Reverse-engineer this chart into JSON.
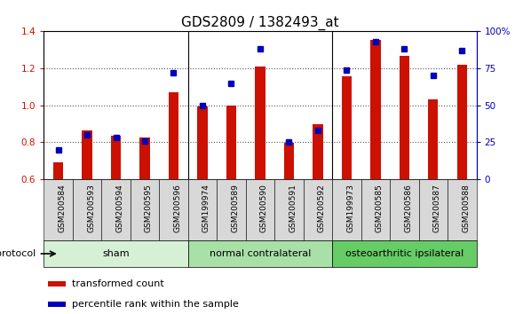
{
  "title": "GDS2809 / 1382493_at",
  "samples": [
    "GSM200584",
    "GSM200593",
    "GSM200594",
    "GSM200595",
    "GSM200596",
    "GSM199974",
    "GSM200589",
    "GSM200590",
    "GSM200591",
    "GSM200592",
    "GSM199973",
    "GSM200585",
    "GSM200586",
    "GSM200587",
    "GSM200588"
  ],
  "red_values": [
    0.69,
    0.865,
    0.835,
    0.825,
    1.07,
    0.995,
    1.0,
    1.21,
    0.795,
    0.895,
    1.155,
    1.355,
    1.265,
    1.03,
    1.22
  ],
  "blue_percentile": [
    20,
    30,
    28,
    26,
    72,
    50,
    65,
    88,
    25,
    33,
    74,
    93,
    88,
    70,
    87
  ],
  "groups": [
    {
      "label": "sham",
      "start": 0,
      "end": 5
    },
    {
      "label": "normal contralateral",
      "start": 5,
      "end": 10
    },
    {
      "label": "osteoarthritic ipsilateral",
      "start": 10,
      "end": 15
    }
  ],
  "group_colors": [
    "#d5f0d5",
    "#a8e0a8",
    "#66cc66"
  ],
  "ylim_left": [
    0.6,
    1.4
  ],
  "ylim_right": [
    0,
    100
  ],
  "yticks_left": [
    0.6,
    0.8,
    1.0,
    1.2,
    1.4
  ],
  "yticks_right": [
    0,
    25,
    50,
    75,
    100
  ],
  "ytick_labels_right": [
    "0",
    "25",
    "50",
    "75",
    "100%"
  ],
  "bar_color": "#cc1100",
  "dot_color": "#0000bb",
  "bar_width": 0.35,
  "background_color": "#ffffff",
  "plot_bg_color": "#ffffff",
  "xtick_bg_color": "#d8d8d8",
  "grid_color": "#000000",
  "legend_items": [
    {
      "label": "transformed count",
      "color": "#cc1100"
    },
    {
      "label": "percentile rank within the sample",
      "color": "#0000bb"
    }
  ],
  "protocol_label": "protocol",
  "title_fontsize": 11,
  "tick_fontsize": 7.5,
  "xtick_fontsize": 6.5
}
